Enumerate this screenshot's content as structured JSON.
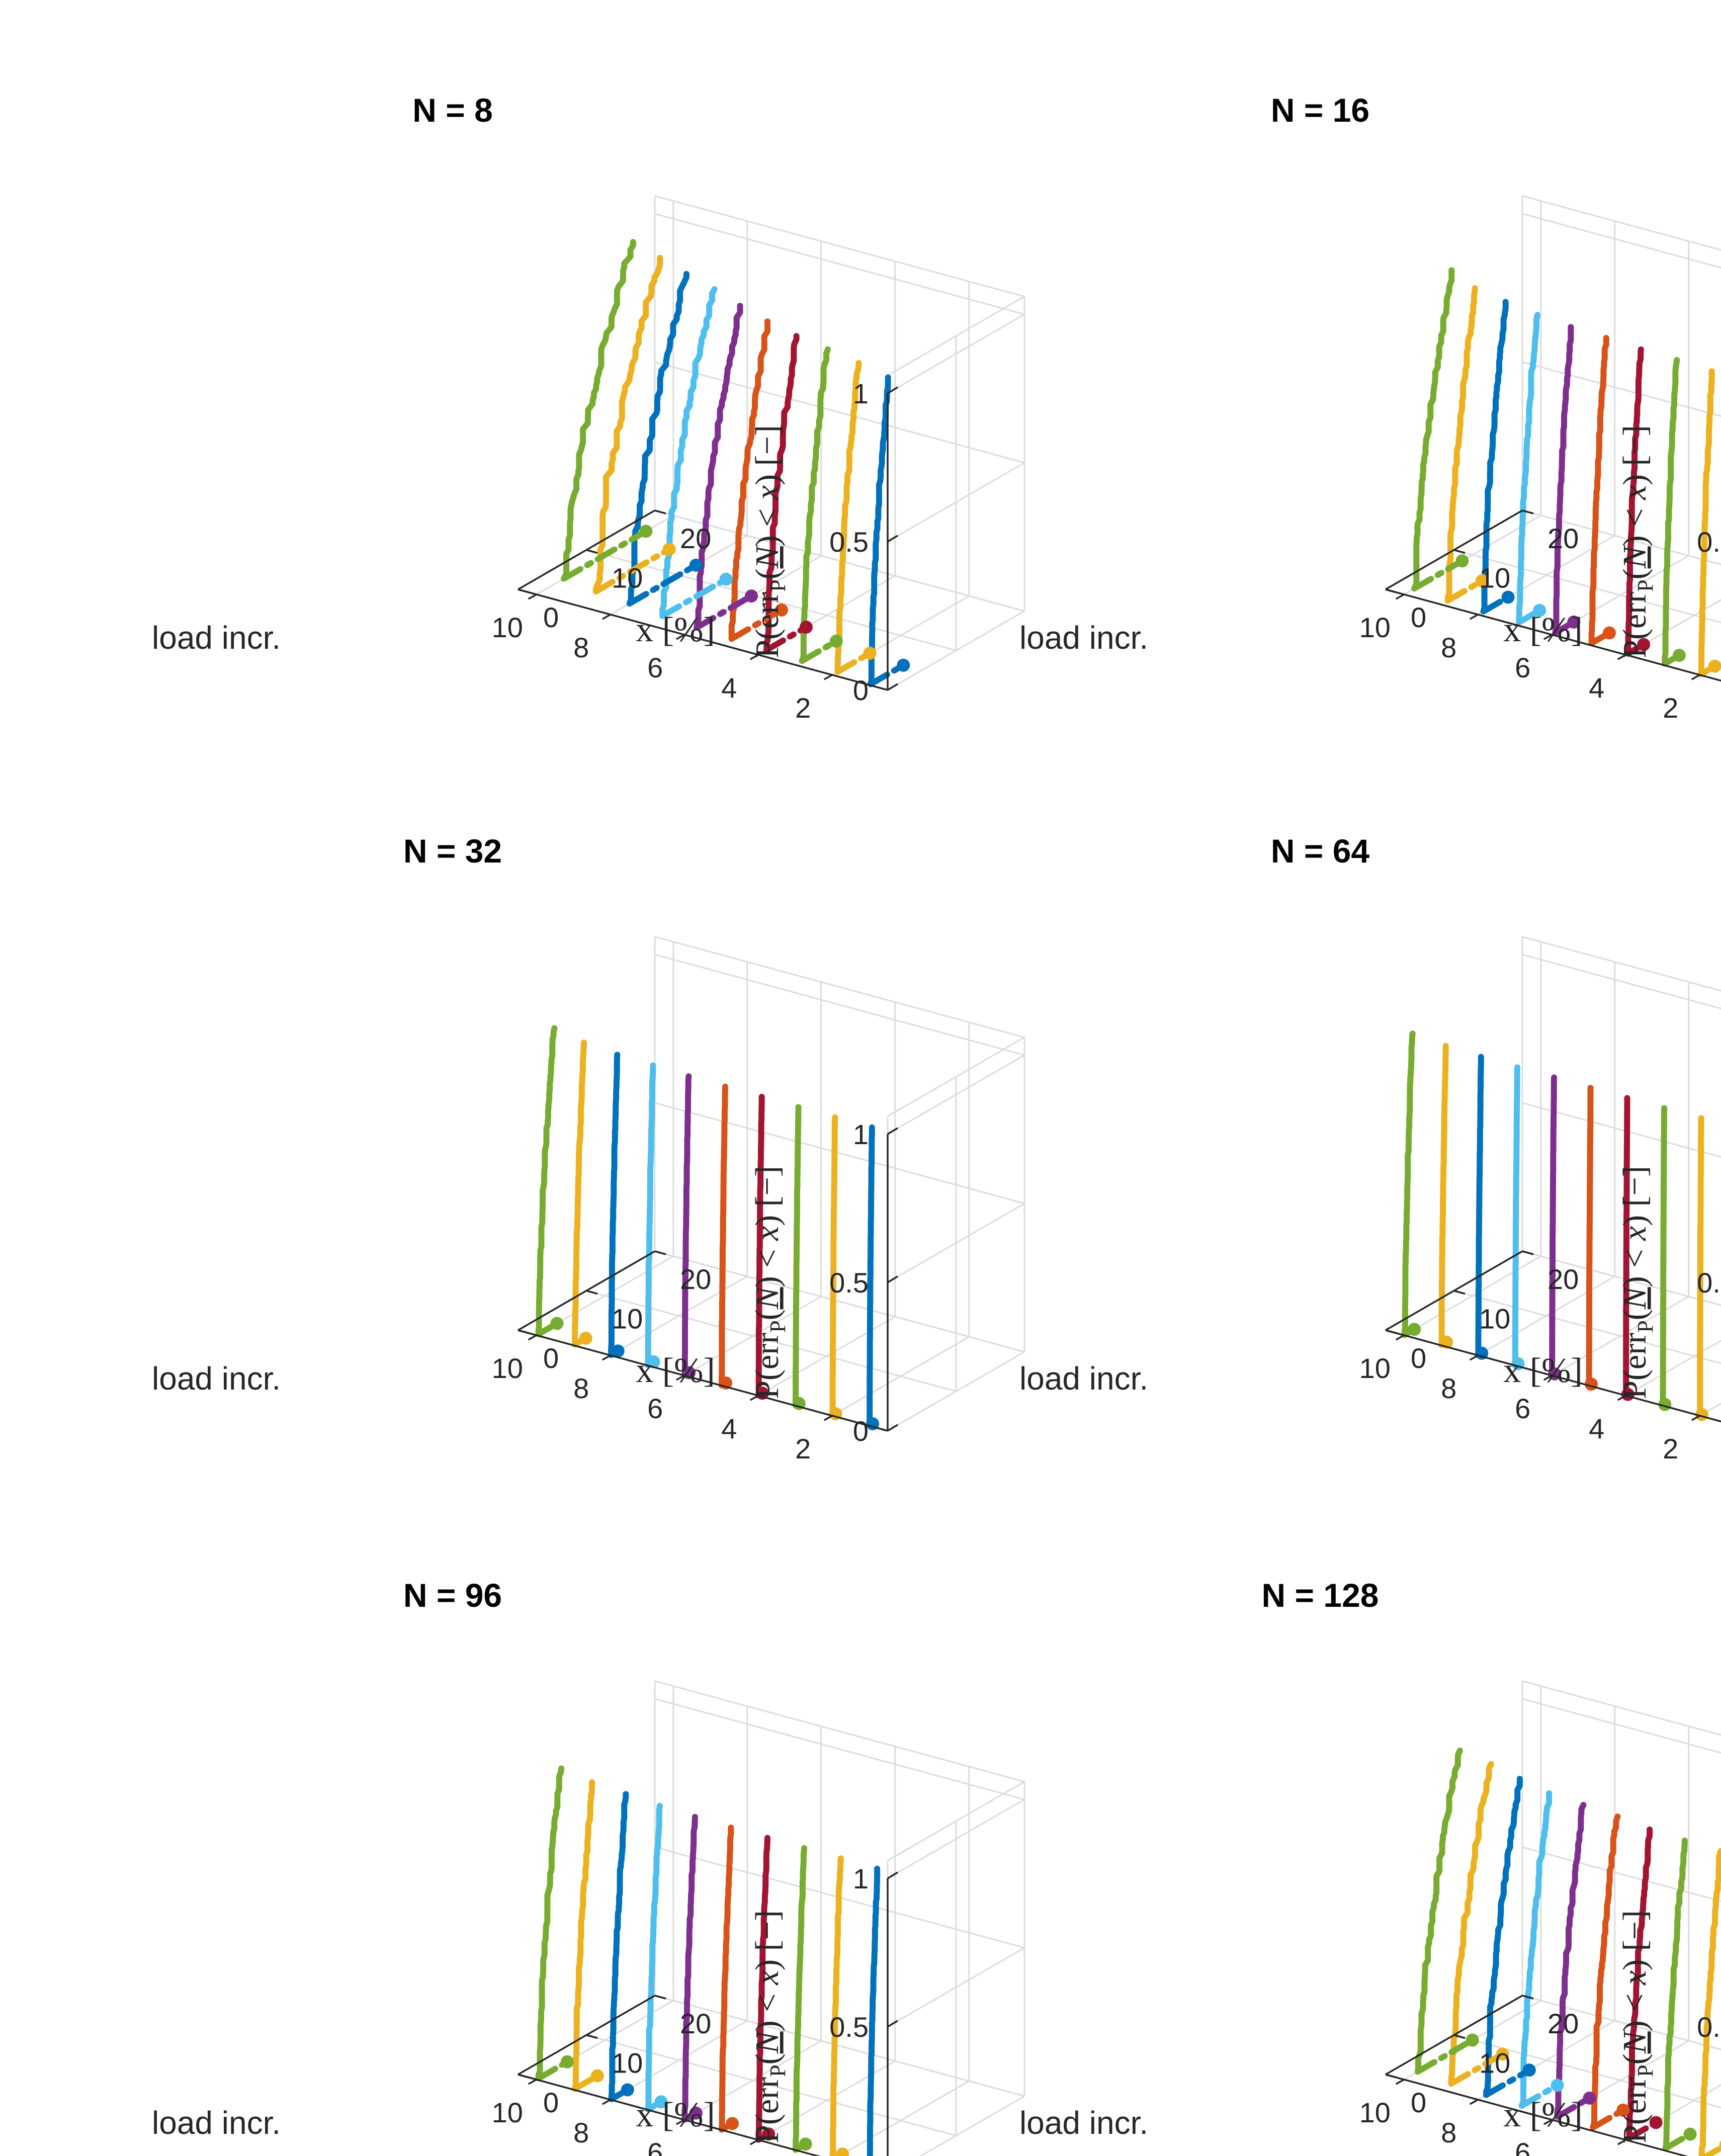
{
  "colors": [
    "#0072BD",
    "#EDB120",
    "#77AC30",
    "#A2142F",
    "#D95319",
    "#7E2F8E",
    "#4DBEEE",
    "#0072BD",
    "#EDB120",
    "#77AC30"
  ],
  "axis_labels": {
    "z": "P(err_P(N) < x) [−]",
    "z_parts": [
      "P(err",
      "P",
      "(",
      "N",
      ") < ",
      "x",
      ") [−]"
    ],
    "x": "load incr.",
    "y": "x [%]"
  },
  "chart_data": [
    {
      "type": "line3d",
      "title": "N = 8",
      "xlabel": "load incr.",
      "ylabel": "x [%]",
      "zlabel": "P(err_P(N) < x) [−]",
      "xticks": [
        "2",
        "4",
        "6",
        "8",
        "10"
      ],
      "yticks": [
        "0",
        "10",
        "20"
      ],
      "zticks": [
        "0",
        "0.5",
        "1"
      ],
      "xlim": [
        0.5,
        10.5
      ],
      "ylim": [
        0,
        20
      ],
      "zlim": [
        0,
        1
      ],
      "series": [
        {
          "name": "load incr. 1",
          "x_start": 0.2,
          "x_end": 2.8,
          "tail_end": 5.0
        },
        {
          "name": "load incr. 2",
          "x_start": 0.8,
          "x_end": 3.8,
          "tail_end": 5.5
        },
        {
          "name": "load incr. 3",
          "x_start": 1.0,
          "x_end": 4.6,
          "tail_end": 6.0
        },
        {
          "name": "load incr. 4",
          "x_start": 1.2,
          "x_end": 5.5,
          "tail_end": 7.0
        },
        {
          "name": "load incr. 5",
          "x_start": 1.5,
          "x_end": 6.8,
          "tail_end": 8.8
        },
        {
          "name": "load incr. 6",
          "x_start": 1.8,
          "x_end": 8.0,
          "tail_end": 9.8
        },
        {
          "name": "load incr. 7",
          "x_start": 2.2,
          "x_end": 9.5,
          "tail_end": 11.5
        },
        {
          "name": "load incr. 8",
          "x_start": 2.8,
          "x_end": 11.0,
          "tail_end": 12.5
        },
        {
          "name": "load incr. 9",
          "x_start": 3.3,
          "x_end": 12.5,
          "tail_end": 14.0
        },
        {
          "name": "load incr. 10",
          "x_start": 4.0,
          "x_end": 14.0,
          "tail_end": 16.0
        }
      ]
    },
    {
      "type": "line3d",
      "title": "N = 16",
      "xlabel": "load incr.",
      "ylabel": "x [%]",
      "zlabel": "P(err_P(N) < x) [−]",
      "xticks": [
        "2",
        "4",
        "6",
        "8",
        "10"
      ],
      "yticks": [
        "0",
        "10",
        "20"
      ],
      "zticks": [
        "0",
        "0.5",
        "1"
      ],
      "xlim": [
        0.5,
        10.5
      ],
      "ylim": [
        0,
        20
      ],
      "zlim": [
        0,
        1
      ],
      "series": [
        {
          "name": "load incr. 1",
          "x_start": 0.1,
          "x_end": 1.6,
          "tail_end": 2.0
        },
        {
          "name": "load incr. 2",
          "x_start": 0.2,
          "x_end": 1.8,
          "tail_end": 2.2
        },
        {
          "name": "load incr. 3",
          "x_start": 0.3,
          "x_end": 2.0,
          "tail_end": 2.4
        },
        {
          "name": "load incr. 4",
          "x_start": 0.3,
          "x_end": 2.2,
          "tail_end": 2.6
        },
        {
          "name": "load incr. 5",
          "x_start": 0.4,
          "x_end": 2.5,
          "tail_end": 3.0
        },
        {
          "name": "load incr. 6",
          "x_start": 0.5,
          "x_end": 2.8,
          "tail_end": 3.2
        },
        {
          "name": "load incr. 7",
          "x_start": 0.6,
          "x_end": 3.2,
          "tail_end": 3.6
        },
        {
          "name": "load incr. 8",
          "x_start": 0.8,
          "x_end": 4.0,
          "tail_end": 4.4
        },
        {
          "name": "load incr. 9",
          "x_start": 1.0,
          "x_end": 5.0,
          "tail_end": 6.0
        },
        {
          "name": "load incr. 10",
          "x_start": 1.5,
          "x_end": 7.0,
          "tail_end": 8.5
        }
      ]
    },
    {
      "type": "line3d",
      "title": "N = 32",
      "xlabel": "load incr.",
      "ylabel": "x [%]",
      "zlabel": "P(err_P(N) < x) [−]",
      "xticks": [
        "2",
        "4",
        "6",
        "8",
        "10"
      ],
      "yticks": [
        "0",
        "10",
        "20"
      ],
      "zticks": [
        "0",
        "0.5",
        "1"
      ],
      "xlim": [
        0.5,
        10.5
      ],
      "ylim": [
        0,
        20
      ],
      "zlim": [
        0,
        1
      ],
      "series": [
        {
          "name": "load incr. 1",
          "x_start": 0.05,
          "x_end": 0.4,
          "tail_end": 0.5
        },
        {
          "name": "load incr. 2",
          "x_start": 0.05,
          "x_end": 0.4,
          "tail_end": 0.5
        },
        {
          "name": "load incr. 3",
          "x_start": 0.05,
          "x_end": 0.45,
          "tail_end": 0.55
        },
        {
          "name": "load incr. 4",
          "x_start": 0.05,
          "x_end": 0.5,
          "tail_end": 0.6
        },
        {
          "name": "load incr. 5",
          "x_start": 0.05,
          "x_end": 0.55,
          "tail_end": 0.65
        },
        {
          "name": "load incr. 6",
          "x_start": 0.05,
          "x_end": 0.6,
          "tail_end": 0.7
        },
        {
          "name": "load incr. 7",
          "x_start": 0.08,
          "x_end": 0.8,
          "tail_end": 0.9
        },
        {
          "name": "load incr. 8",
          "x_start": 0.1,
          "x_end": 1.0,
          "tail_end": 1.1
        },
        {
          "name": "load incr. 9",
          "x_start": 0.2,
          "x_end": 1.5,
          "tail_end": 1.8
        },
        {
          "name": "load incr. 10",
          "x_start": 0.3,
          "x_end": 2.5,
          "tail_end": 3.0
        }
      ]
    },
    {
      "type": "line3d",
      "title": "N = 64",
      "xlabel": "load incr.",
      "ylabel": "x [%]",
      "zlabel": "P(err_P(N) < x) [−]",
      "xticks": [
        "2",
        "4",
        "6",
        "8",
        "10"
      ],
      "yticks": [
        "0",
        "10",
        "20"
      ],
      "zticks": [
        "0",
        "0.5",
        "1"
      ],
      "xlim": [
        0.5,
        10.5
      ],
      "ylim": [
        0,
        20
      ],
      "zlim": [
        0,
        1
      ],
      "series": [
        {
          "name": "load incr. 1",
          "x_start": 0.02,
          "x_end": 0.2,
          "tail_end": 0.3
        },
        {
          "name": "load incr. 2",
          "x_start": 0.02,
          "x_end": 0.2,
          "tail_end": 0.3
        },
        {
          "name": "load incr. 3",
          "x_start": 0.02,
          "x_end": 0.2,
          "tail_end": 0.3
        },
        {
          "name": "load incr. 4",
          "x_start": 0.02,
          "x_end": 0.2,
          "tail_end": 0.3
        },
        {
          "name": "load incr. 5",
          "x_start": 0.02,
          "x_end": 0.25,
          "tail_end": 0.35
        },
        {
          "name": "load incr. 6",
          "x_start": 0.02,
          "x_end": 0.3,
          "tail_end": 0.4
        },
        {
          "name": "load incr. 7",
          "x_start": 0.03,
          "x_end": 0.35,
          "tail_end": 0.45
        },
        {
          "name": "load incr. 8",
          "x_start": 0.05,
          "x_end": 0.45,
          "tail_end": 0.55
        },
        {
          "name": "load incr. 9",
          "x_start": 0.08,
          "x_end": 0.7,
          "tail_end": 0.8
        },
        {
          "name": "load incr. 10",
          "x_start": 0.1,
          "x_end": 1.2,
          "tail_end": 1.5
        }
      ]
    },
    {
      "type": "line3d",
      "title": "N = 96",
      "xlabel": "load incr.",
      "ylabel": "x [%]",
      "zlabel": "P(err_P(N) < x) [−]",
      "xticks": [
        "2",
        "4",
        "6",
        "8",
        "10"
      ],
      "yticks": [
        "0",
        "10",
        "20"
      ],
      "zticks": [
        "0",
        "0.5",
        "1"
      ],
      "xlim": [
        0.5,
        10.5
      ],
      "ylim": [
        0,
        20
      ],
      "zlim": [
        0,
        1
      ],
      "series": [
        {
          "name": "load incr. 1",
          "x_start": 0.05,
          "x_end": 1.2,
          "tail_end": 1.6
        },
        {
          "name": "load incr. 2",
          "x_start": 0.05,
          "x_end": 1.2,
          "tail_end": 1.5
        },
        {
          "name": "load incr. 3",
          "x_start": 0.05,
          "x_end": 1.3,
          "tail_end": 1.5
        },
        {
          "name": "load incr. 4",
          "x_start": 0.05,
          "x_end": 1.3,
          "tail_end": 1.5
        },
        {
          "name": "load incr. 5",
          "x_start": 0.05,
          "x_end": 1.4,
          "tail_end": 1.6
        },
        {
          "name": "load incr. 6",
          "x_start": 0.05,
          "x_end": 1.5,
          "tail_end": 1.7
        },
        {
          "name": "load incr. 7",
          "x_start": 0.1,
          "x_end": 1.8,
          "tail_end": 2.0
        },
        {
          "name": "load incr. 8",
          "x_start": 0.15,
          "x_end": 2.2,
          "tail_end": 2.5
        },
        {
          "name": "load incr. 9",
          "x_start": 0.2,
          "x_end": 2.8,
          "tail_end": 3.5
        },
        {
          "name": "load incr. 10",
          "x_start": 0.3,
          "x_end": 3.5,
          "tail_end": 4.5
        }
      ]
    },
    {
      "type": "line3d",
      "title": "N = 128",
      "xlabel": "load incr.",
      "ylabel": "x [%]",
      "zlabel": "P(err_P(N) < x) [−]",
      "xticks": [
        "2",
        "4",
        "6",
        "8",
        "10"
      ],
      "yticks": [
        "0",
        "10",
        "20"
      ],
      "zticks": [
        "0",
        "0.5",
        "1"
      ],
      "xlim": [
        0.5,
        10.5
      ],
      "ylim": [
        0,
        20
      ],
      "zlim": [
        0,
        1
      ],
      "series": [
        {
          "name": "load incr. 1",
          "x_start": 0.1,
          "x_end": 2.5,
          "tail_end": 3.5
        },
        {
          "name": "load incr. 2",
          "x_start": 0.3,
          "x_end": 3.0,
          "tail_end": 3.8
        },
        {
          "name": "load incr. 3",
          "x_start": 0.4,
          "x_end": 3.2,
          "tail_end": 4.0
        },
        {
          "name": "load incr. 4",
          "x_start": 0.5,
          "x_end": 3.5,
          "tail_end": 4.4
        },
        {
          "name": "load incr. 5",
          "x_start": 0.6,
          "x_end": 4.0,
          "tail_end": 5.0
        },
        {
          "name": "load incr. 6",
          "x_start": 0.8,
          "x_end": 4.5,
          "tail_end": 5.5
        },
        {
          "name": "load incr. 7",
          "x_start": 1.0,
          "x_end": 5.0,
          "tail_end": 6.2
        },
        {
          "name": "load incr. 8",
          "x_start": 1.2,
          "x_end": 6.0,
          "tail_end": 7.5
        },
        {
          "name": "load incr. 9",
          "x_start": 1.5,
          "x_end": 7.0,
          "tail_end": 9.0
        },
        {
          "name": "load incr. 10",
          "x_start": 2.0,
          "x_end": 8.0,
          "tail_end": 10.0
        }
      ]
    }
  ]
}
